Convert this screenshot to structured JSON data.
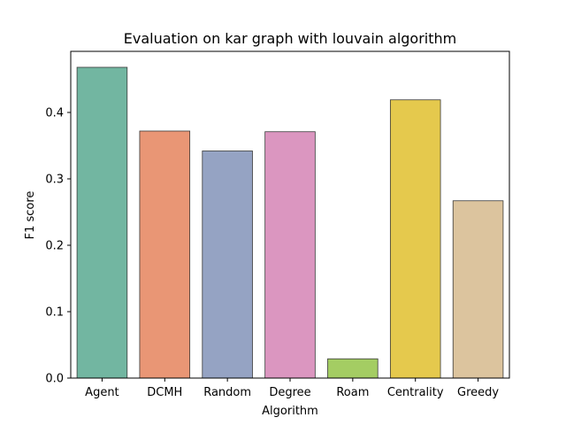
{
  "chart_data": {
    "type": "bar",
    "title": "Evaluation on kar graph with louvain algorithm",
    "xlabel": "Algorithm",
    "ylabel": "F1 score",
    "categories": [
      "Agent",
      "DCMH",
      "Random",
      "Degree",
      "Roam",
      "Centrality",
      "Greedy"
    ],
    "values": [
      0.468,
      0.372,
      0.342,
      0.371,
      0.029,
      0.419,
      0.267
    ],
    "colors": [
      "#72b6a1",
      "#e99675",
      "#95a3c3",
      "#db96c0",
      "#a4cd63",
      "#e5c94d",
      "#dcc49e"
    ],
    "ylim": [
      0,
      0.492
    ],
    "yticks": [
      0.0,
      0.1,
      0.2,
      0.3,
      0.4
    ],
    "ytick_labels": [
      "0.0",
      "0.1",
      "0.2",
      "0.3",
      "0.4"
    ],
    "grid": false,
    "legend": "none"
  }
}
